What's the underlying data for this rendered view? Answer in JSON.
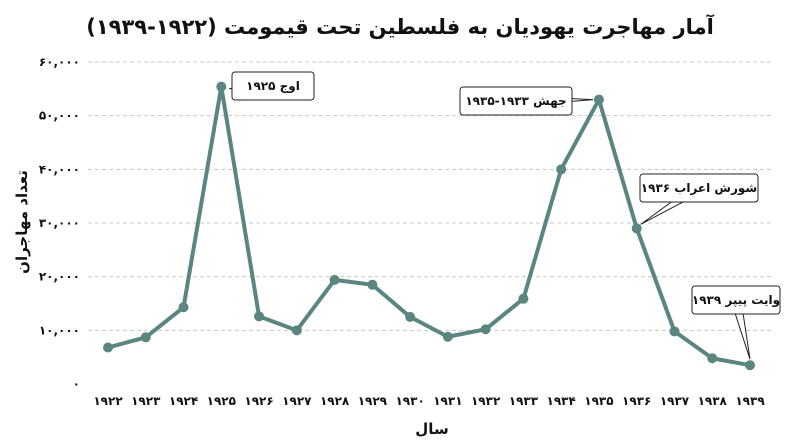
{
  "chart_data": {
    "type": "line",
    "title": "آمار مهاجرت یهودیان به فلسطین تحت قیمومت (۱۹۲۲-۱۹۳۹)",
    "xlabel": "سال",
    "ylabel": "تعداد مهاجران",
    "x": [
      "۱۹۲۲",
      "۱۹۲۳",
      "۱۹۲۴",
      "۱۹۲۵",
      "۱۹۲۶",
      "۱۹۲۷",
      "۱۹۲۸",
      "۱۹۲۹",
      "۱۹۳۰",
      "۱۹۳۱",
      "۱۹۳۲",
      "۱۹۳۳",
      "۱۹۳۴",
      "۱۹۳۵",
      "۱۹۳۶",
      "۱۹۳۷",
      "۱۹۳۸",
      "۱۹۳۹"
    ],
    "values": [
      6800,
      8700,
      14300,
      55400,
      12600,
      10000,
      19400,
      18500,
      12500,
      8800,
      10200,
      15900,
      40000,
      53000,
      29000,
      9800,
      4800,
      3500
    ],
    "ylim": [
      0,
      60000
    ],
    "yticks": [
      0,
      10000,
      20000,
      30000,
      40000,
      50000,
      60000
    ],
    "ytick_labels": [
      "۰",
      "۱۰,۰۰۰",
      "۲۰,۰۰۰",
      "۳۰,۰۰۰",
      "۴۰,۰۰۰",
      "۵۰,۰۰۰",
      "۶۰,۰۰۰"
    ],
    "annotations": [
      {
        "text": "اوج ۱۹۲۵",
        "index": 3
      },
      {
        "text": "جهش ۱۹۳۳-۱۹۳۵",
        "index": 13
      },
      {
        "text": "شورش اعراب ۱۹۳۶",
        "index": 14
      },
      {
        "text": "وایت پیپر ۱۹۳۹",
        "index": 17
      }
    ],
    "grid": "horizontal-dashed",
    "colors": {
      "line": "#5a8580",
      "marker": "#5a8580",
      "grid": "#c8c8c8"
    }
  }
}
